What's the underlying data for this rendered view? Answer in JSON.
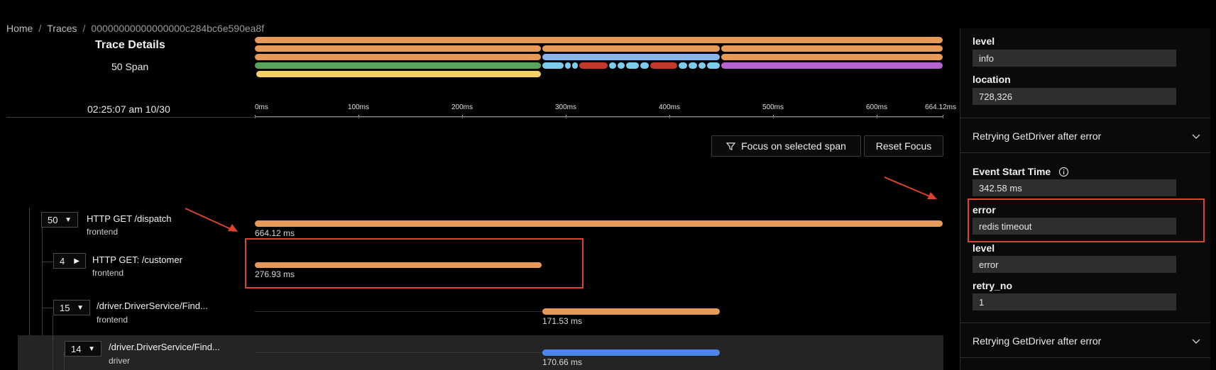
{
  "breadcrumb": {
    "home": "Home",
    "traces": "Traces",
    "trace_id": "00000000000000000c284bc6e590ea8f",
    "sep": "/"
  },
  "trace": {
    "title": "Trace Details",
    "span_count": "50 Span",
    "start_time": "02:25:07 am 10/30"
  },
  "colors": {
    "orange": "#e59a5a",
    "lightblue": "#8ab4ee",
    "cyan": "#7ccbea",
    "green": "#5aa35a",
    "yellow": "#f2d16b",
    "red": "#c0392b",
    "purple": "#b463cf",
    "blue": "#4d86e8",
    "annotation": "#d9432f"
  },
  "axis": {
    "ticks": [
      "0ms",
      "100ms",
      "200ms",
      "300ms",
      "400ms",
      "500ms",
      "600ms",
      "664.12ms"
    ]
  },
  "toolbar": {
    "focus_label": "Focus on selected span",
    "reset_label": "Reset Focus"
  },
  "spans": [
    {
      "count": "50",
      "name": "HTTP GET /dispatch",
      "service": "frontend",
      "duration": "664.12 ms"
    },
    {
      "count": "4",
      "name": "HTTP GET: /customer",
      "service": "frontend",
      "duration": "276.93 ms"
    },
    {
      "count": "15",
      "name": "/driver.DriverService/Find...",
      "service": "frontend",
      "duration": "171.53 ms"
    },
    {
      "count": "14",
      "name": "/driver.DriverService/Find...",
      "service": "driver",
      "duration": "170.66 ms"
    }
  ],
  "panel": {
    "top_fields": [
      {
        "label": "level",
        "value": "info"
      },
      {
        "label": "location",
        "value": "728,326"
      }
    ],
    "event1_title": "Retrying GetDriver after error",
    "event_fields": [
      {
        "label": "Event Start Time",
        "value": "342.58 ms"
      },
      {
        "label": "error",
        "value": "redis timeout"
      },
      {
        "label": "level",
        "value": "error"
      },
      {
        "label": "retry_no",
        "value": "1"
      }
    ],
    "event2_title": "Retrying GetDriver after error"
  }
}
